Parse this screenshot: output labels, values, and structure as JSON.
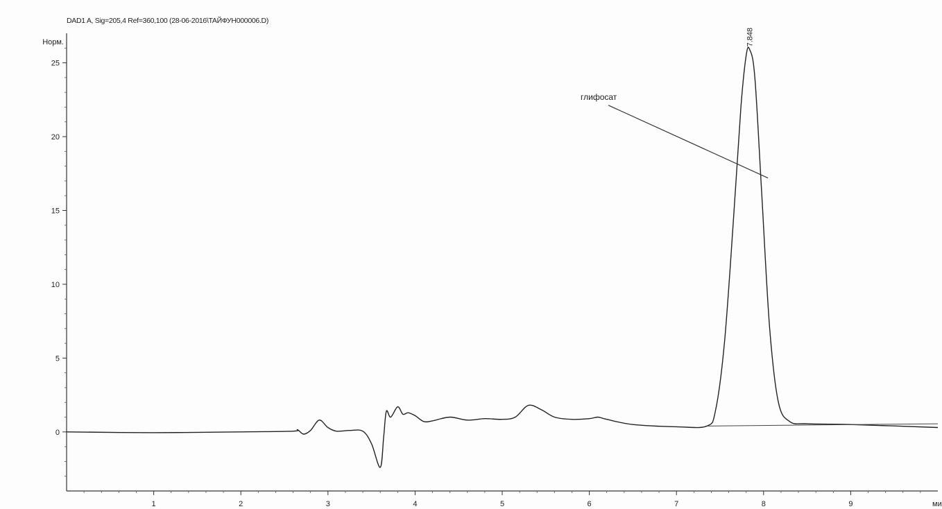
{
  "header": {
    "title": "DAD1 A, Sig=205,4 Ref=360,100 (28-06-2016\\TAЙФУН000006.D)"
  },
  "chart_data": {
    "type": "line",
    "title": "DAD1 A, Sig=205,4 Ref=360,100 (28-06-2016\\TAЙФУН000006.D)",
    "ylabel": "Норм.",
    "xlabel": "ми",
    "xlim": [
      0,
      10
    ],
    "ylim": [
      -4,
      27
    ],
    "x_ticks": [
      1,
      2,
      3,
      4,
      5,
      6,
      7,
      8,
      9
    ],
    "y_ticks": [
      0,
      5,
      10,
      15,
      20,
      25
    ],
    "grid": false,
    "series": [
      {
        "points": [
          [
            0.0,
            0.0
          ],
          [
            1.0,
            -0.05
          ],
          [
            2.0,
            0.0
          ],
          [
            2.6,
            0.05
          ],
          [
            2.65,
            0.15
          ],
          [
            2.72,
            -0.15
          ],
          [
            2.8,
            0.1
          ],
          [
            2.9,
            0.8
          ],
          [
            3.0,
            0.3
          ],
          [
            3.1,
            0.05
          ],
          [
            3.25,
            0.1
          ],
          [
            3.4,
            0.05
          ],
          [
            3.5,
            -0.8
          ],
          [
            3.6,
            -2.4
          ],
          [
            3.64,
            -0.3
          ],
          [
            3.67,
            1.4
          ],
          [
            3.72,
            1.0
          ],
          [
            3.8,
            1.7
          ],
          [
            3.86,
            1.2
          ],
          [
            3.92,
            1.3
          ],
          [
            4.0,
            1.1
          ],
          [
            4.1,
            0.7
          ],
          [
            4.2,
            0.75
          ],
          [
            4.4,
            1.0
          ],
          [
            4.6,
            0.8
          ],
          [
            4.8,
            0.9
          ],
          [
            5.0,
            0.85
          ],
          [
            5.15,
            1.0
          ],
          [
            5.3,
            1.8
          ],
          [
            5.45,
            1.5
          ],
          [
            5.6,
            1.0
          ],
          [
            5.8,
            0.85
          ],
          [
            6.0,
            0.9
          ],
          [
            6.1,
            1.0
          ],
          [
            6.2,
            0.85
          ],
          [
            6.5,
            0.5
          ],
          [
            7.0,
            0.35
          ],
          [
            7.35,
            0.4
          ],
          [
            7.45,
            1.5
          ],
          [
            7.55,
            6.0
          ],
          [
            7.65,
            14.0
          ],
          [
            7.74,
            22.0
          ],
          [
            7.8,
            25.5
          ],
          [
            7.84,
            25.9
          ],
          [
            7.9,
            24.0
          ],
          [
            7.98,
            16.0
          ],
          [
            8.07,
            7.0
          ],
          [
            8.17,
            2.0
          ],
          [
            8.3,
            0.7
          ],
          [
            8.5,
            0.55
          ],
          [
            9.0,
            0.5
          ],
          [
            10.0,
            0.3
          ]
        ]
      }
    ],
    "baseline": [
      [
        7.35,
        0.4
      ],
      [
        10.0,
        0.55
      ]
    ],
    "peaks": [
      {
        "rt": "7.848",
        "x": 7.84,
        "y": 25.9
      }
    ],
    "annotations": [
      {
        "text": "глифосат",
        "x": 5.9,
        "y": 22.5,
        "arrow_to": [
          8.05,
          17.2
        ]
      }
    ]
  }
}
